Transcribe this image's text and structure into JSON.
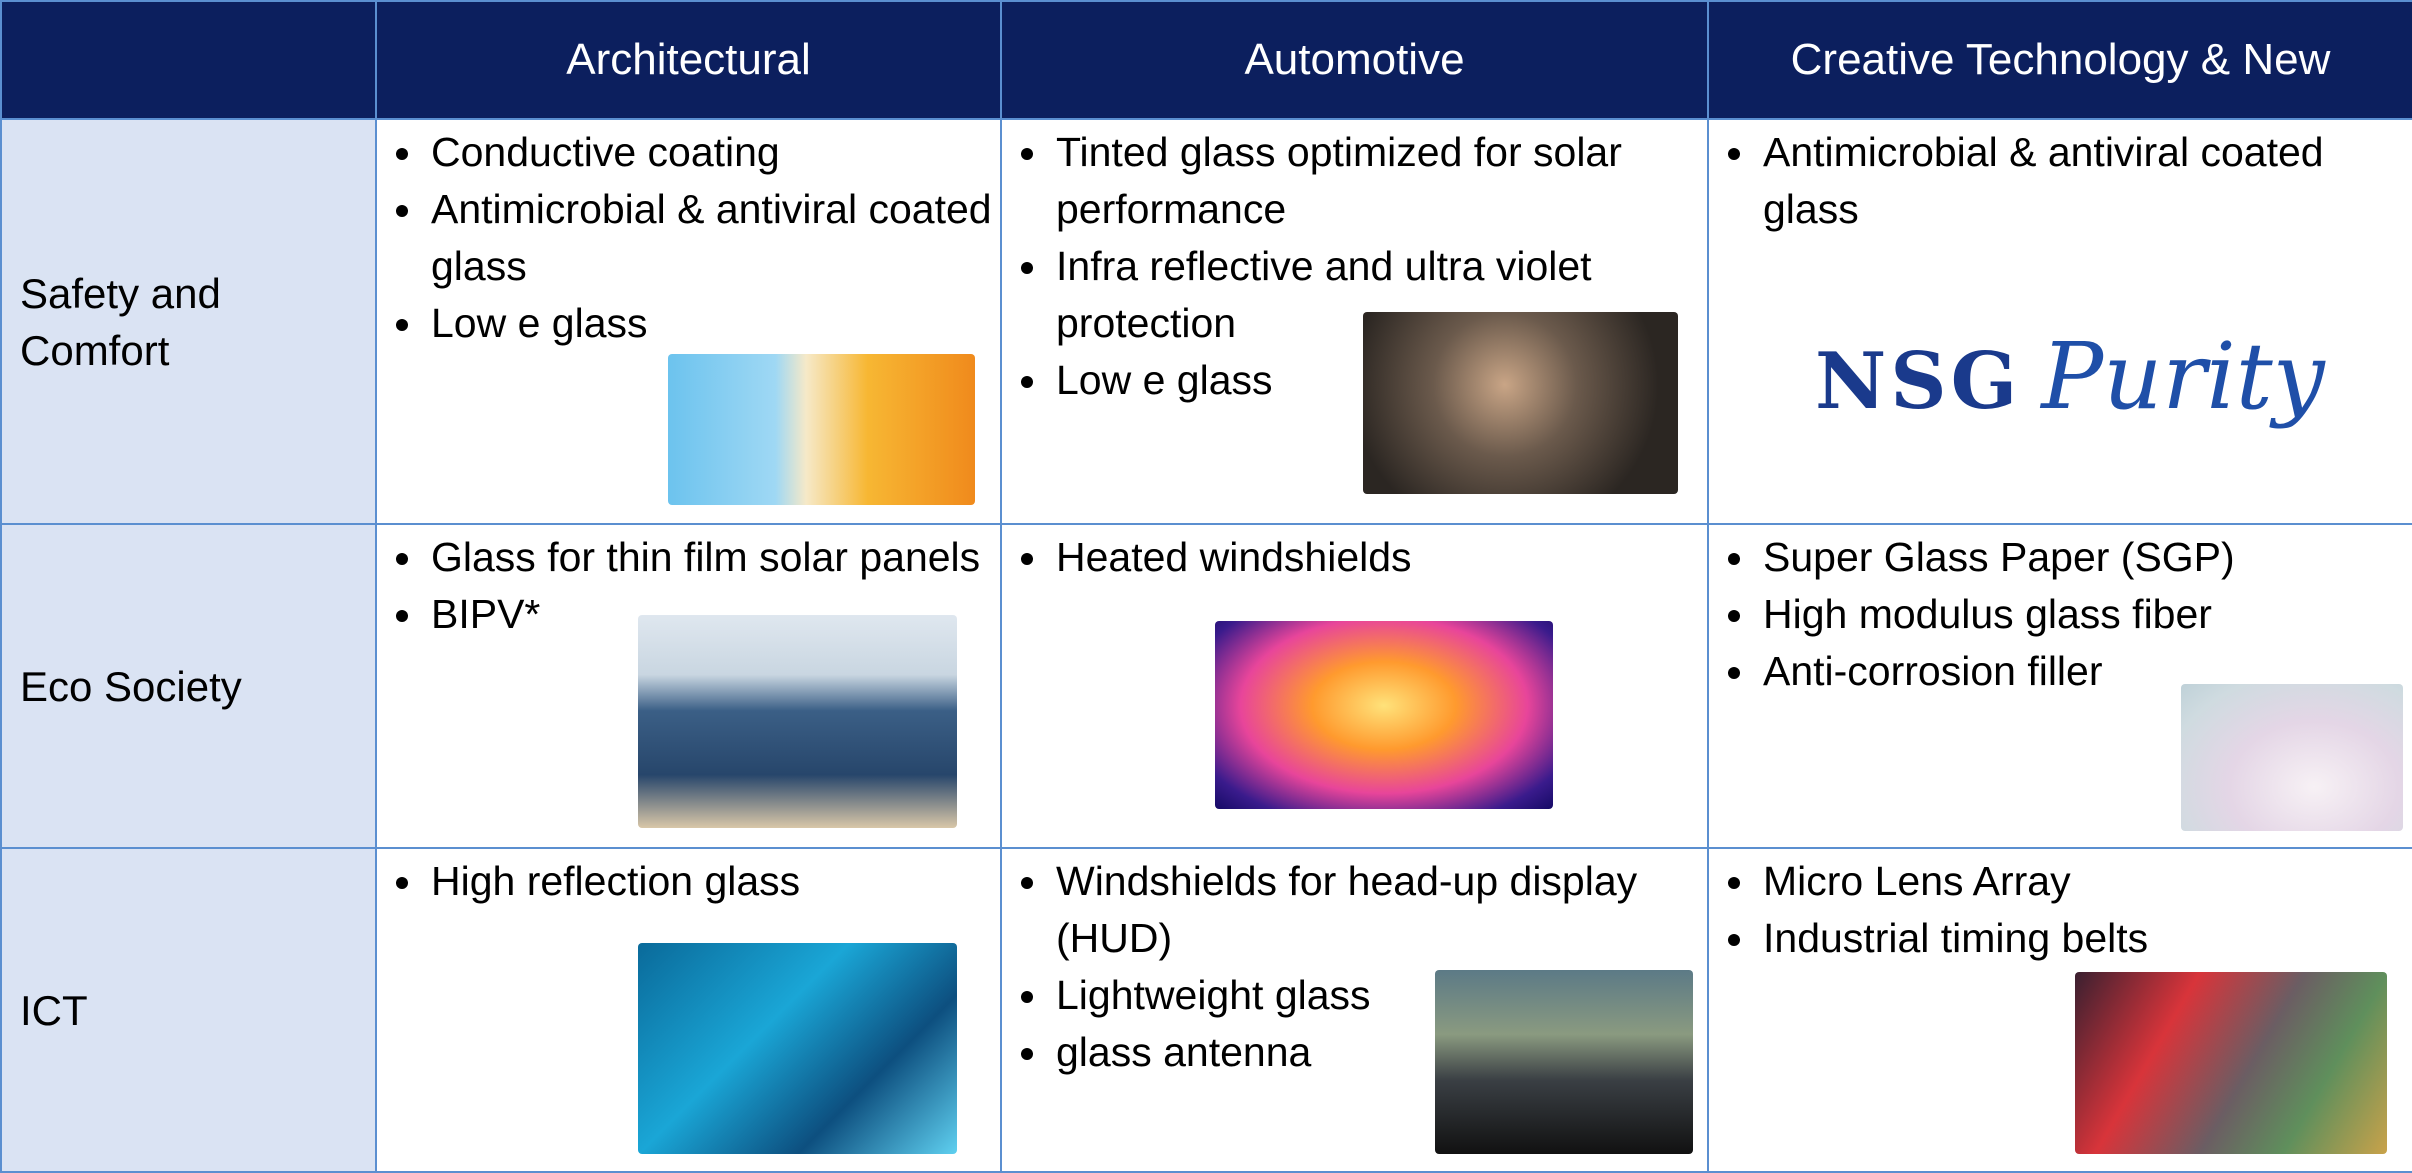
{
  "header": {
    "columns": [
      "Architectural",
      "Automotive",
      "Creative Technology & New"
    ]
  },
  "rows": [
    {
      "label": "Safety and Comfort",
      "cells": [
        {
          "items": [
            "Conductive coating",
            "Antimicrobial & antiviral coated glass",
            "Low e glass"
          ]
        },
        {
          "items": [
            "Tinted glass optimized for solar performance",
            "Infra reflective and ultra violet protection",
            "Low e glass"
          ]
        },
        {
          "items": [
            "Antimicrobial & antiviral coated glass"
          ],
          "logo": [
            "NSG",
            "Purity"
          ]
        }
      ]
    },
    {
      "label": "Eco Society",
      "cells": [
        {
          "items": [
            "Glass for thin film solar panels",
            "BIPV*"
          ]
        },
        {
          "items": [
            "Heated windshields"
          ]
        },
        {
          "items": [
            "Super Glass Paper (SGP)",
            "High modulus glass fiber",
            "Anti-corrosion filler"
          ]
        }
      ]
    },
    {
      "label": "ICT",
      "cells": [
        {
          "items": [
            "High reflection glass"
          ]
        },
        {
          "items": [
            "Windshields for head-up display (HUD)",
            "Lightweight glass",
            "glass antenna"
          ]
        },
        {
          "items": [
            "Micro Lens Array",
            "Industrial timing belts"
          ]
        }
      ]
    }
  ]
}
